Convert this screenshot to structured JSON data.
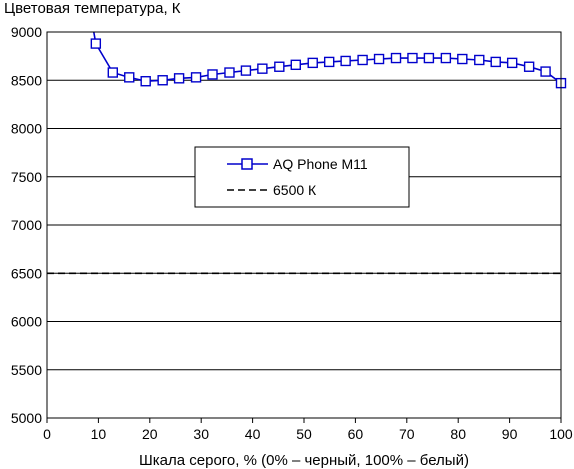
{
  "chart_data": {
    "type": "line",
    "ylabel": "Цветовая температура, К",
    "xlabel": "Шкала серого, % (0% – черный, 100% – белый)",
    "xlim": [
      0,
      100
    ],
    "ylim": [
      5000,
      9000
    ],
    "x_ticks": [
      0,
      10,
      20,
      30,
      40,
      50,
      60,
      70,
      80,
      90,
      100
    ],
    "y_ticks": [
      5000,
      5500,
      6000,
      6500,
      7000,
      7500,
      8000,
      8500,
      9000
    ],
    "grid": "horizontal",
    "legend_position": "center",
    "series": [
      {
        "name": "AQ Phone M11",
        "color": "#0000cc",
        "marker": "square",
        "x": [
          6.5,
          9.5,
          12.8,
          16,
          19.2,
          22.5,
          25.7,
          29,
          32.2,
          35.5,
          38.7,
          41.9,
          45.2,
          48.4,
          51.7,
          54.9,
          58.1,
          61.4,
          64.6,
          67.9,
          71.1,
          74.3,
          77.6,
          80.8,
          84.1,
          87.3,
          90.5,
          93.8,
          97,
          100
        ],
        "y": [
          9800,
          8880,
          8580,
          8530,
          8490,
          8500,
          8520,
          8530,
          8560,
          8580,
          8600,
          8620,
          8640,
          8660,
          8680,
          8690,
          8700,
          8710,
          8720,
          8730,
          8730,
          8730,
          8730,
          8720,
          8710,
          8690,
          8680,
          8640,
          8590,
          8470
        ],
        "markers_from_index": 1
      },
      {
        "name": "6500 К",
        "color": "#000000",
        "style": "dashed",
        "x": [
          0,
          100
        ],
        "y": [
          6500,
          6500
        ]
      }
    ]
  }
}
